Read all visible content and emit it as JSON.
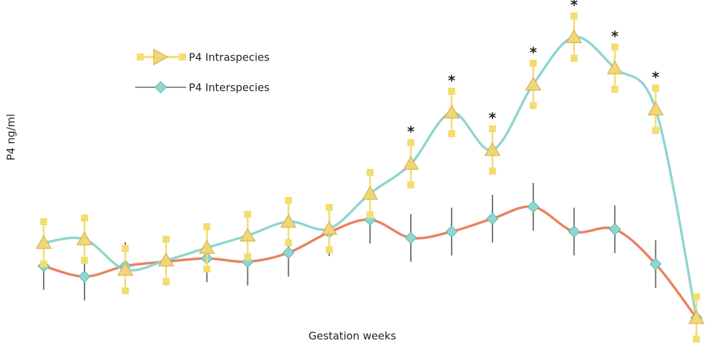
{
  "chart_data": {
    "type": "line",
    "ylabel": "P4 ng/ml",
    "xlabel": "Gestation weeks",
    "categories": [
      null,
      null,
      null,
      null,
      null,
      null,
      null,
      null,
      null,
      null,
      null,
      null,
      null,
      null,
      null,
      null,
      null
    ],
    "ylim": [
      0,
      100
    ],
    "series": [
      {
        "name": "P4 Intraspecies",
        "color": "#f0d675",
        "line_color": "#8fd6cf",
        "errorbar_color": "#f3dd70",
        "values": [
          28.7,
          29.8,
          20.6,
          23.4,
          27.2,
          30.9,
          35.1,
          33.0,
          43.6,
          52.6,
          68.1,
          56.8,
          76.6,
          90.9,
          81.5,
          69.1,
          6.0
        ],
        "errors": [
          6.4,
          6.4,
          6.4,
          6.4,
          6.4,
          6.4,
          6.4,
          6.4,
          6.4,
          6.4,
          6.4,
          6.4,
          6.4,
          6.4,
          6.4,
          6.4,
          6.4
        ],
        "significance": [
          null,
          null,
          null,
          null,
          null,
          null,
          null,
          null,
          null,
          "*",
          "*",
          "*",
          "*",
          "*",
          "*",
          "*",
          null
        ]
      },
      {
        "name": "P4 Interspecies",
        "color": "#8fd6cf",
        "line_color": "#e8825f",
        "errorbar_color": "#666666",
        "values": [
          21.7,
          18.5,
          21.7,
          23.0,
          24.0,
          23.0,
          25.7,
          31.9,
          35.7,
          30.2,
          32.1,
          36.0,
          39.6,
          32.1,
          32.8,
          22.3,
          6.0
        ],
        "errors": [
          7.2,
          7.2,
          7.2,
          7.2,
          7.2,
          7.2,
          7.2,
          7.2,
          7.2,
          7.2,
          7.2,
          7.2,
          7.2,
          7.2,
          7.2,
          7.2,
          7.2
        ]
      }
    ]
  }
}
